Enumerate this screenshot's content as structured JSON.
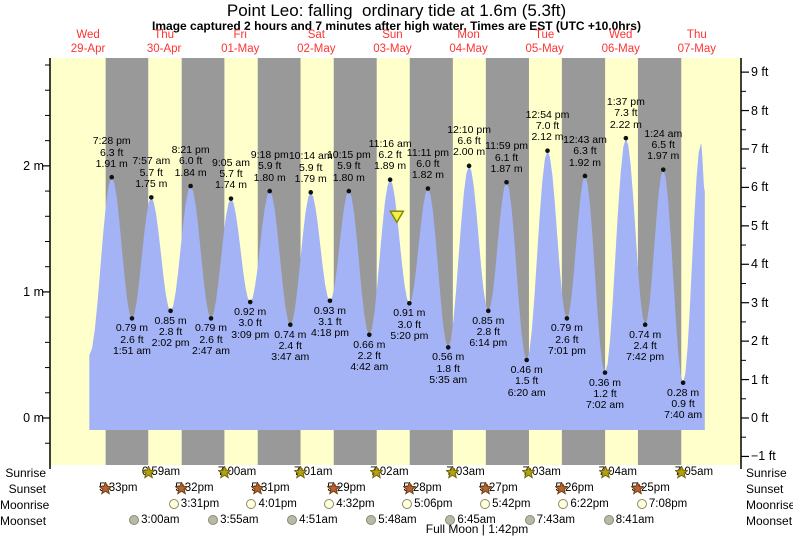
{
  "title": "Point Leo: falling  ordinary tide at 1.6m (5.3ft)",
  "subtitle": "Image captured 2 hours and 7 minutes after high water. Times are EST (UTC +10.0hrs)",
  "colors": {
    "day_band": "#ffffcc",
    "night_band": "#999999",
    "water": "#a3b3f5",
    "day_label_red": "#ff3333",
    "axis": "#000000",
    "dot": "#111111",
    "marker_fill": "#f0f046",
    "marker_stroke": "#8a8a00",
    "sunrise_star_fill": "#b3a112",
    "sunrise_star_stroke": "#75660a",
    "sunset_star_fill": "#b5652f",
    "sunset_star_stroke": "#733d12",
    "moonrise_fill": "#ffffdc",
    "moonset_fill": "#b9b9a9"
  },
  "days": [
    {
      "dow": "Wed",
      "date": "29-Apr"
    },
    {
      "dow": "Thu",
      "date": "30-Apr"
    },
    {
      "dow": "Fri",
      "date": "01-May"
    },
    {
      "dow": "Sat",
      "date": "02-May"
    },
    {
      "dow": "Sun",
      "date": "03-May"
    },
    {
      "dow": "Mon",
      "date": "04-May"
    },
    {
      "dow": "Tue",
      "date": "05-May"
    },
    {
      "dow": "Wed",
      "date": "06-May"
    },
    {
      "dow": "Thu",
      "date": "07-May"
    }
  ],
  "chart_data": {
    "type": "area",
    "title": "Point Leo: falling ordinary tide at 1.6m (5.3ft)",
    "x_axis": {
      "unit": "days",
      "day_labels_at": "noon",
      "num_days": 9
    },
    "y_axis_left": {
      "unit": "m",
      "major_ticks": [
        0,
        1,
        2
      ],
      "labels": [
        "0 m",
        "1 m",
        "2 m"
      ],
      "minor_step": 0.2
    },
    "y_axis_right": {
      "unit": "ft",
      "major_ticks": [
        -1,
        0,
        1,
        2,
        3,
        4,
        5,
        6,
        7,
        8,
        9
      ],
      "minor_step": 0.5
    },
    "shading": {
      "yellow": "daylight",
      "gray": "night"
    },
    "high_tides": [
      {
        "day": 0,
        "time": "7:28 pm",
        "ft": "6.3 ft",
        "m": "1.91 m"
      },
      {
        "day": 1,
        "time": "7:57 am",
        "ft": "5.7 ft",
        "m": "1.75 m"
      },
      {
        "day": 1,
        "time": "8:21 pm",
        "ft": "6.0 ft",
        "m": "1.84 m"
      },
      {
        "day": 2,
        "time": "9:05 am",
        "ft": "5.7 ft",
        "m": "1.74 m"
      },
      {
        "day": 2,
        "time": "9:18 pm",
        "ft": "5.9 ft",
        "m": "1.80 m"
      },
      {
        "day": 3,
        "time": "10:14 am",
        "ft": "5.9 ft",
        "m": "1.79 m"
      },
      {
        "day": 3,
        "time": "10:15 pm",
        "ft": "5.9 ft",
        "m": "1.80 m"
      },
      {
        "day": 4,
        "time": "11:16 am",
        "ft": "6.2 ft",
        "m": "1.89 m"
      },
      {
        "day": 4,
        "time": "11:11 pm",
        "ft": "6.0 ft",
        "m": "1.82 m"
      },
      {
        "day": 5,
        "time": "12:10 pm",
        "ft": "6.6 ft",
        "m": "2.00 m"
      },
      {
        "day": 5,
        "time": "11:59 pm",
        "ft": "6.1 ft",
        "m": "1.87 m"
      },
      {
        "day": 6,
        "time": "12:54 pm",
        "ft": "7.0 ft",
        "m": "2.12 m"
      },
      {
        "day": 7,
        "time": "12:43 am",
        "ft": "6.3 ft",
        "m": "1.92 m"
      },
      {
        "day": 7,
        "time": "1:37 pm",
        "ft": "7.3 ft",
        "m": "2.22 m"
      },
      {
        "day": 8,
        "time": "1:24 am",
        "ft": "6.5 ft",
        "m": "1.97 m"
      }
    ],
    "low_tides": [
      {
        "day": 1,
        "time": "1:51 am",
        "ft": "2.6 ft",
        "m": "0.79 m"
      },
      {
        "day": 1,
        "time": "2:02 pm",
        "ft": "2.8 ft",
        "m": "0.85 m"
      },
      {
        "day": 2,
        "time": "2:47 am",
        "ft": "2.6 ft",
        "m": "0.79 m"
      },
      {
        "day": 2,
        "time": "3:09 pm",
        "ft": "3.0 ft",
        "m": "0.92 m"
      },
      {
        "day": 3,
        "time": "3:47 am",
        "ft": "2.4 ft",
        "m": "0.74 m"
      },
      {
        "day": 3,
        "time": "4:18 pm",
        "ft": "3.1 ft",
        "m": "0.93 m"
      },
      {
        "day": 4,
        "time": "4:42 am",
        "ft": "2.2 ft",
        "m": "0.66 m"
      },
      {
        "day": 4,
        "time": "5:20 pm",
        "ft": "3.0 ft",
        "m": "0.91 m"
      },
      {
        "day": 5,
        "time": "5:35 am",
        "ft": "1.8 ft",
        "m": "0.56 m"
      },
      {
        "day": 5,
        "time": "6:14 pm",
        "ft": "2.8 ft",
        "m": "0.85 m"
      },
      {
        "day": 6,
        "time": "6:20 am",
        "ft": "1.5 ft",
        "m": "0.46 m"
      },
      {
        "day": 6,
        "time": "7:01 pm",
        "ft": "2.6 ft",
        "m": "0.79 m"
      },
      {
        "day": 7,
        "time": "7:02 am",
        "ft": "1.2 ft",
        "m": "0.36 m"
      },
      {
        "day": 7,
        "time": "7:42 pm",
        "ft": "2.4 ft",
        "m": "0.74 m"
      },
      {
        "day": 8,
        "time": "7:40 am",
        "ft": "0.9 ft",
        "m": "0.28 m"
      }
    ],
    "current_marker": {
      "day": 4,
      "time_h": 13.38,
      "height_m": 1.6,
      "height_ft": 5.3,
      "icon": "current-level-triangle"
    },
    "curve_start": {
      "day": 0,
      "time_h": 12.4,
      "height_m": 0.5
    },
    "curve_end": [
      {
        "day": 8,
        "time_h": 13.3,
        "height_m": 2.18
      },
      {
        "day": 8,
        "time_h": 14.5,
        "height_m": 1.8
      }
    ]
  },
  "astro": {
    "rows": [
      {
        "label": "Sunrise",
        "icon": "sunrise-star",
        "events": [
          {
            "day": 1,
            "time": "6:59am"
          },
          {
            "day": 2,
            "time": "7:00am"
          },
          {
            "day": 3,
            "time": "7:01am"
          },
          {
            "day": 4,
            "time": "7:02am"
          },
          {
            "day": 5,
            "time": "7:03am"
          },
          {
            "day": 6,
            "time": "7:03am"
          },
          {
            "day": 7,
            "time": "7:04am"
          },
          {
            "day": 8,
            "time": "7:05am"
          }
        ]
      },
      {
        "label": "Sunset",
        "icon": "sunset-star",
        "events": [
          {
            "day": 0,
            "time": "5:33pm"
          },
          {
            "day": 1,
            "time": "5:32pm"
          },
          {
            "day": 2,
            "time": "5:31pm"
          },
          {
            "day": 3,
            "time": "5:29pm"
          },
          {
            "day": 4,
            "time": "5:28pm"
          },
          {
            "day": 5,
            "time": "5:27pm"
          },
          {
            "day": 6,
            "time": "5:26pm"
          },
          {
            "day": 7,
            "time": "5:25pm"
          }
        ]
      },
      {
        "label": "Moonrise",
        "icon": "moonrise-circle",
        "events": [
          {
            "day": 1,
            "time": "3:31pm"
          },
          {
            "day": 2,
            "time": "4:01pm"
          },
          {
            "day": 3,
            "time": "4:32pm"
          },
          {
            "day": 4,
            "time": "5:06pm"
          },
          {
            "day": 5,
            "time": "5:42pm"
          },
          {
            "day": 6,
            "time": "6:22pm"
          },
          {
            "day": 7,
            "time": "7:08pm"
          }
        ]
      },
      {
        "label": "Moonset",
        "icon": "moonset-circle",
        "events": [
          {
            "day": 1,
            "time": "3:00am"
          },
          {
            "day": 2,
            "time": "3:55am"
          },
          {
            "day": 3,
            "time": "4:51am"
          },
          {
            "day": 4,
            "time": "5:48am"
          },
          {
            "day": 5,
            "time": "6:45am"
          },
          {
            "day": 6,
            "time": "7:43am"
          },
          {
            "day": 7,
            "time": "8:41am"
          }
        ]
      }
    ],
    "full_moon": "Full Moon | 1:42pm",
    "full_moon_day": 5,
    "full_moon_time": "1:42pm"
  }
}
